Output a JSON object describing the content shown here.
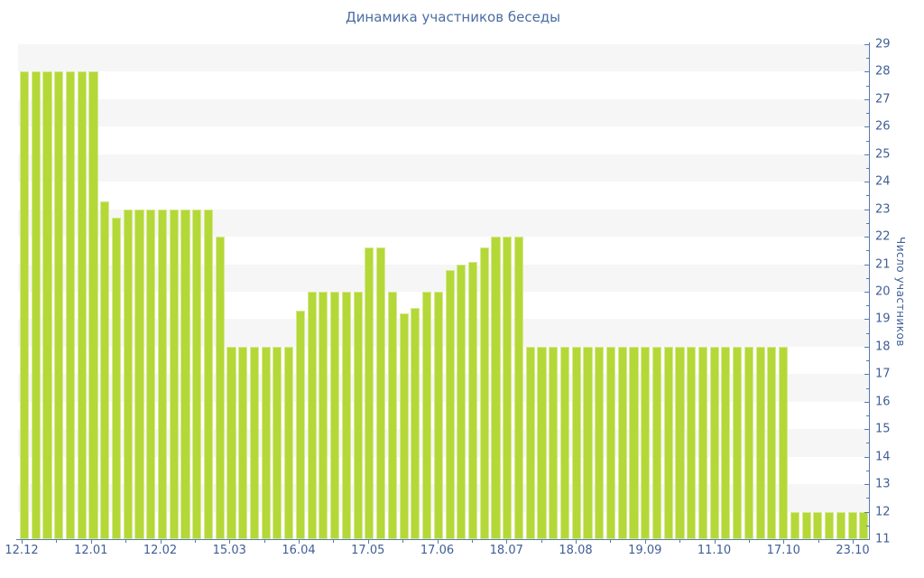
{
  "title": "Динамика участников беседы",
  "y_axis": {
    "title": "Число участников",
    "min": 11,
    "max": 29,
    "major_ticks": [
      29,
      28,
      27,
      26,
      25,
      24,
      23,
      22,
      21,
      20,
      19,
      18,
      17,
      16,
      15,
      14,
      13,
      12,
      11
    ],
    "minor_tick_step": 0.5
  },
  "x_axis": {
    "labels": [
      "12.12",
      "12.01",
      "12.02",
      "15.03",
      "16.04",
      "17.05",
      "17.06",
      "18.07",
      "18.08",
      "19.09",
      "11.10",
      "17.10",
      "23.10"
    ]
  },
  "colors": {
    "bar": "#b4d837",
    "band_gray": "#f6f6f6",
    "axis_line": "#577ab0",
    "text_blue": "#3f5e96",
    "title_blue": "#4a6da3"
  },
  "chart_data": {
    "type": "bar",
    "title": "Динамика участников беседы",
    "xlabel": "",
    "ylabel": "Число участников",
    "ylim": [
      11,
      29
    ],
    "x_tick_labels": [
      "12.12",
      "12.01",
      "12.02",
      "15.03",
      "16.04",
      "17.05",
      "17.06",
      "18.07",
      "18.08",
      "19.09",
      "11.10",
      "17.10",
      "23.10"
    ],
    "legend": "none",
    "grid": "zebra-bands-horizontal",
    "values": [
      28,
      28,
      28,
      28,
      28,
      28,
      28,
      23.3,
      22.7,
      23,
      23,
      23,
      23,
      23,
      23,
      23,
      23,
      22,
      18,
      18,
      18,
      18,
      18,
      18,
      19.3,
      20,
      20,
      20,
      20,
      20,
      21.6,
      21.6,
      20,
      19.2,
      19.4,
      20,
      20,
      20.8,
      21,
      21.1,
      21.6,
      22,
      22,
      22,
      18,
      18,
      18,
      18,
      18,
      18,
      18,
      18,
      18,
      18,
      18,
      18,
      18,
      18,
      18,
      18,
      18,
      18,
      18,
      18,
      18,
      18,
      18,
      12,
      12,
      12,
      12,
      12,
      12,
      12
    ]
  }
}
